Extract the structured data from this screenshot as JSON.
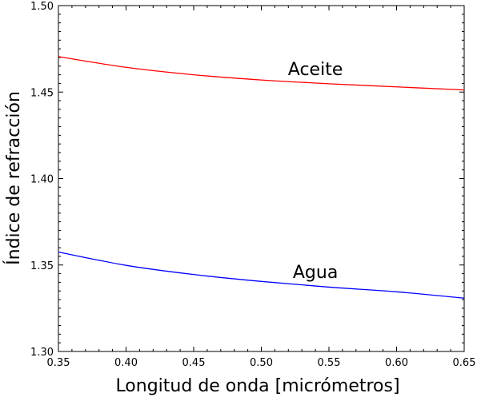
{
  "chart_data": {
    "type": "line",
    "xlabel": "Longitud de onda [micrómetros]",
    "ylabel": "Índice de refracción",
    "xlim": [
      0.35,
      0.65
    ],
    "ylim": [
      1.3,
      1.5
    ],
    "x_ticks": [
      "0.35",
      "0.40",
      "0.45",
      "0.50",
      "0.55",
      "0.60",
      "0.65"
    ],
    "y_ticks": [
      "1.30",
      "1.35",
      "1.40",
      "1.45",
      "1.50"
    ],
    "grid": false,
    "series": [
      {
        "name": "Aceite",
        "color": "#ff0000",
        "x": [
          0.35,
          0.4,
          0.45,
          0.5,
          0.55,
          0.6,
          0.65
        ],
        "y": [
          1.4705,
          1.4643,
          1.46,
          1.457,
          1.4548,
          1.453,
          1.4512
        ]
      },
      {
        "name": "Agua",
        "color": "#0000ff",
        "x": [
          0.35,
          0.4,
          0.45,
          0.5,
          0.55,
          0.6,
          0.65
        ],
        "y": [
          1.3575,
          1.3498,
          1.3445,
          1.3405,
          1.3372,
          1.3345,
          1.3308
        ]
      }
    ]
  }
}
